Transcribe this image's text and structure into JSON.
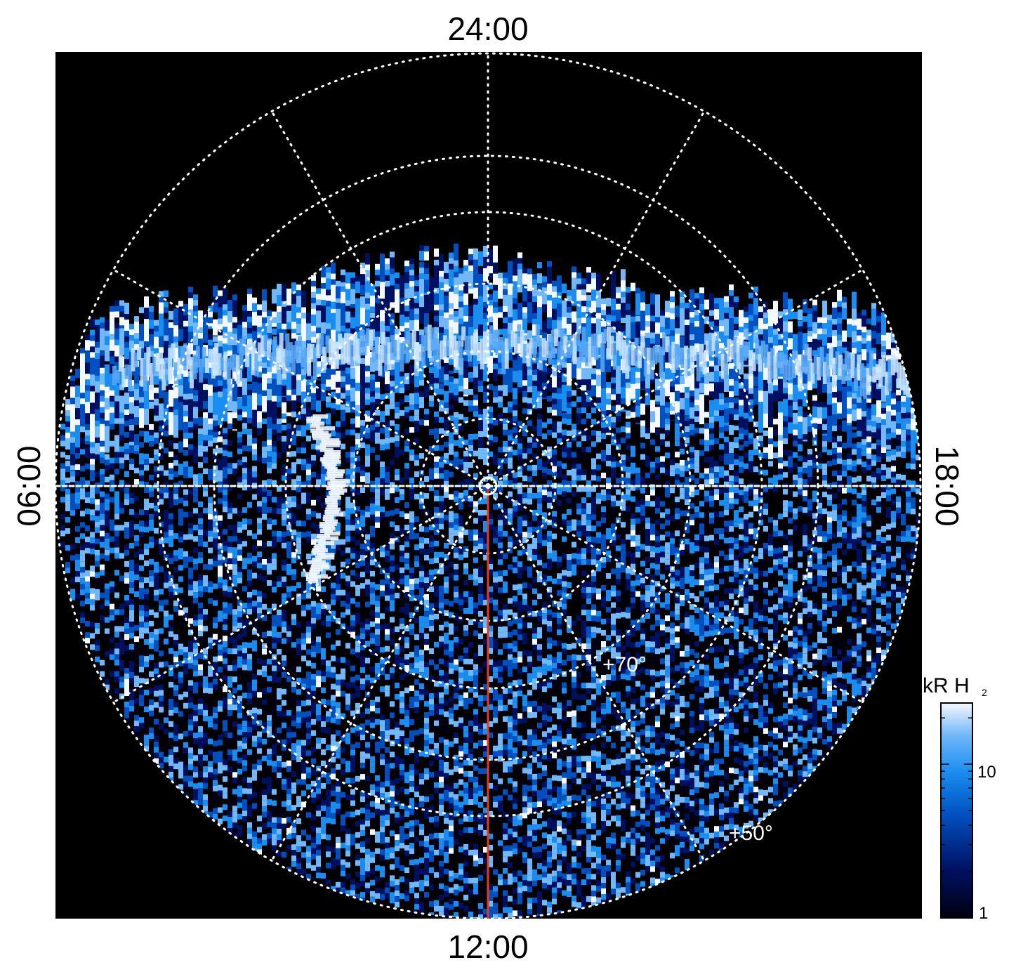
{
  "hour_labels": {
    "top": "24:00",
    "bottom": "12:00",
    "left": "06:00",
    "right": "18:00"
  },
  "latitude_labels": {
    "inner": "+70°",
    "outer": "+50°"
  },
  "colorbar": {
    "title": "kR H",
    "title_subscript": "2",
    "tick_high": "10",
    "tick_low": "1",
    "scale": "log",
    "colors": [
      "#000010",
      "#001060",
      "#0050c0",
      "#1a8ef0",
      "#70b8f8",
      "#f4f8ff"
    ]
  },
  "colors": {
    "background": "#000000",
    "grid": "#ffffff",
    "meridian_line": "#e83a1a"
  },
  "image": {
    "type": "polar projection auroral emission map",
    "icons": [
      "pole-marker-icon"
    ]
  }
}
